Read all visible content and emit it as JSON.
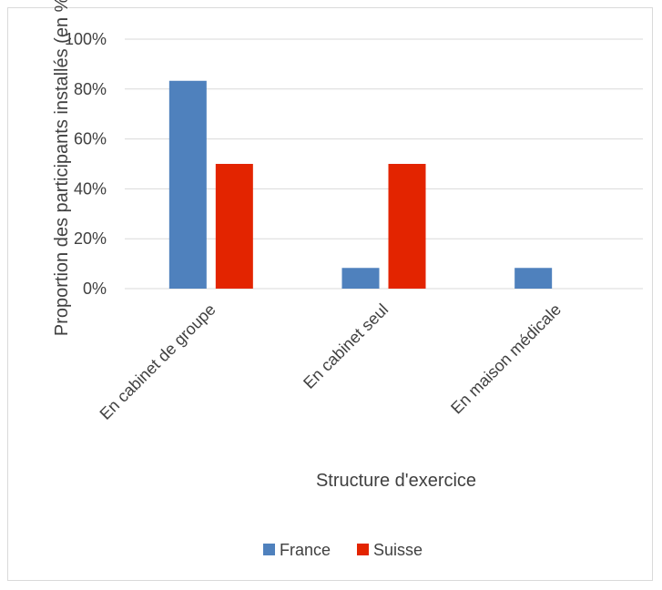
{
  "chart_data": {
    "type": "bar",
    "categories": [
      "En cabinet de groupe",
      "En cabinet seul",
      "En maison médicale"
    ],
    "series": [
      {
        "name": "France",
        "values": [
          83.3,
          8.3,
          8.3
        ],
        "color": "#4f81bd"
      },
      {
        "name": "Suisse",
        "values": [
          50,
          50,
          0
        ],
        "color": "#e32400"
      }
    ],
    "xlabel": "Structure d'exercice",
    "ylabel": "Proportion des participants installés (en %)",
    "ylim": [
      0,
      100
    ],
    "y_ticks": [
      "0%",
      "20%",
      "40%",
      "60%",
      "80%",
      "100%"
    ],
    "grid": true,
    "legend_position": "bottom"
  }
}
